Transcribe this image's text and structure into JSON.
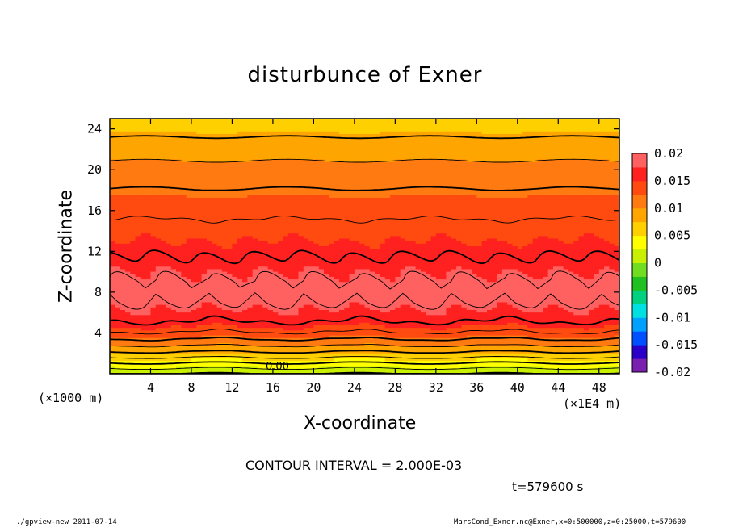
{
  "chart_data": {
    "type": "heatmap",
    "title": "disturbunce of Exner",
    "xlabel": "X-coordinate",
    "ylabel": "Z-coordinate",
    "x_unit_left": "(×1000 m)",
    "x_unit_right": "(×1E4 m)",
    "xlim": [
      0,
      50
    ],
    "ylim": [
      0,
      25
    ],
    "xticks": [
      4,
      8,
      12,
      16,
      20,
      24,
      28,
      32,
      36,
      40,
      44,
      48
    ],
    "yticks": [
      4,
      8,
      12,
      16,
      20,
      24
    ],
    "colorbar": {
      "min": -0.02,
      "max": 0.02,
      "ticks": [
        "0.02",
        "0.015",
        "0.01",
        "0.005",
        "0",
        "-0.005",
        "-0.01",
        "-0.015",
        "-0.02"
      ],
      "colors": [
        "#7a1fb0",
        "#2a00c8",
        "#0050ff",
        "#00a0ff",
        "#00e0e0",
        "#00d080",
        "#20c020",
        "#70dd20",
        "#c8f000",
        "#ffff00",
        "#ffd000",
        "#ffa500",
        "#ff7a10",
        "#ff4a10",
        "#ff2020",
        "#ff6060"
      ]
    },
    "contour_interval": "CONTOUR INTERVAL = 2.000E-03",
    "zero_contour_label": "0.00",
    "time": "t=579600  s",
    "grid": false,
    "profile_z": [
      0,
      1,
      2,
      3,
      4,
      5,
      6,
      7,
      8,
      9,
      10,
      11,
      12,
      13,
      14,
      15,
      16,
      17,
      18,
      19,
      20,
      21,
      22,
      23,
      24,
      25
    ],
    "profile_value": [
      0.0,
      0.0038,
      0.0075,
      0.0108,
      0.0138,
      0.0158,
      0.0172,
      0.0181,
      0.0185,
      0.0182,
      0.0174,
      0.0164,
      0.0156,
      0.015,
      0.0146,
      0.0141,
      0.0135,
      0.0128,
      0.0121,
      0.0114,
      0.0107,
      0.0099,
      0.0091,
      0.0082,
      0.0072,
      0.0062
    ]
  },
  "footer": {
    "left": "./gpview-new   2011-07-14",
    "right": "MarsCond_Exner.nc@Exner,x=0:500000,z=0:25000,t=579600"
  }
}
